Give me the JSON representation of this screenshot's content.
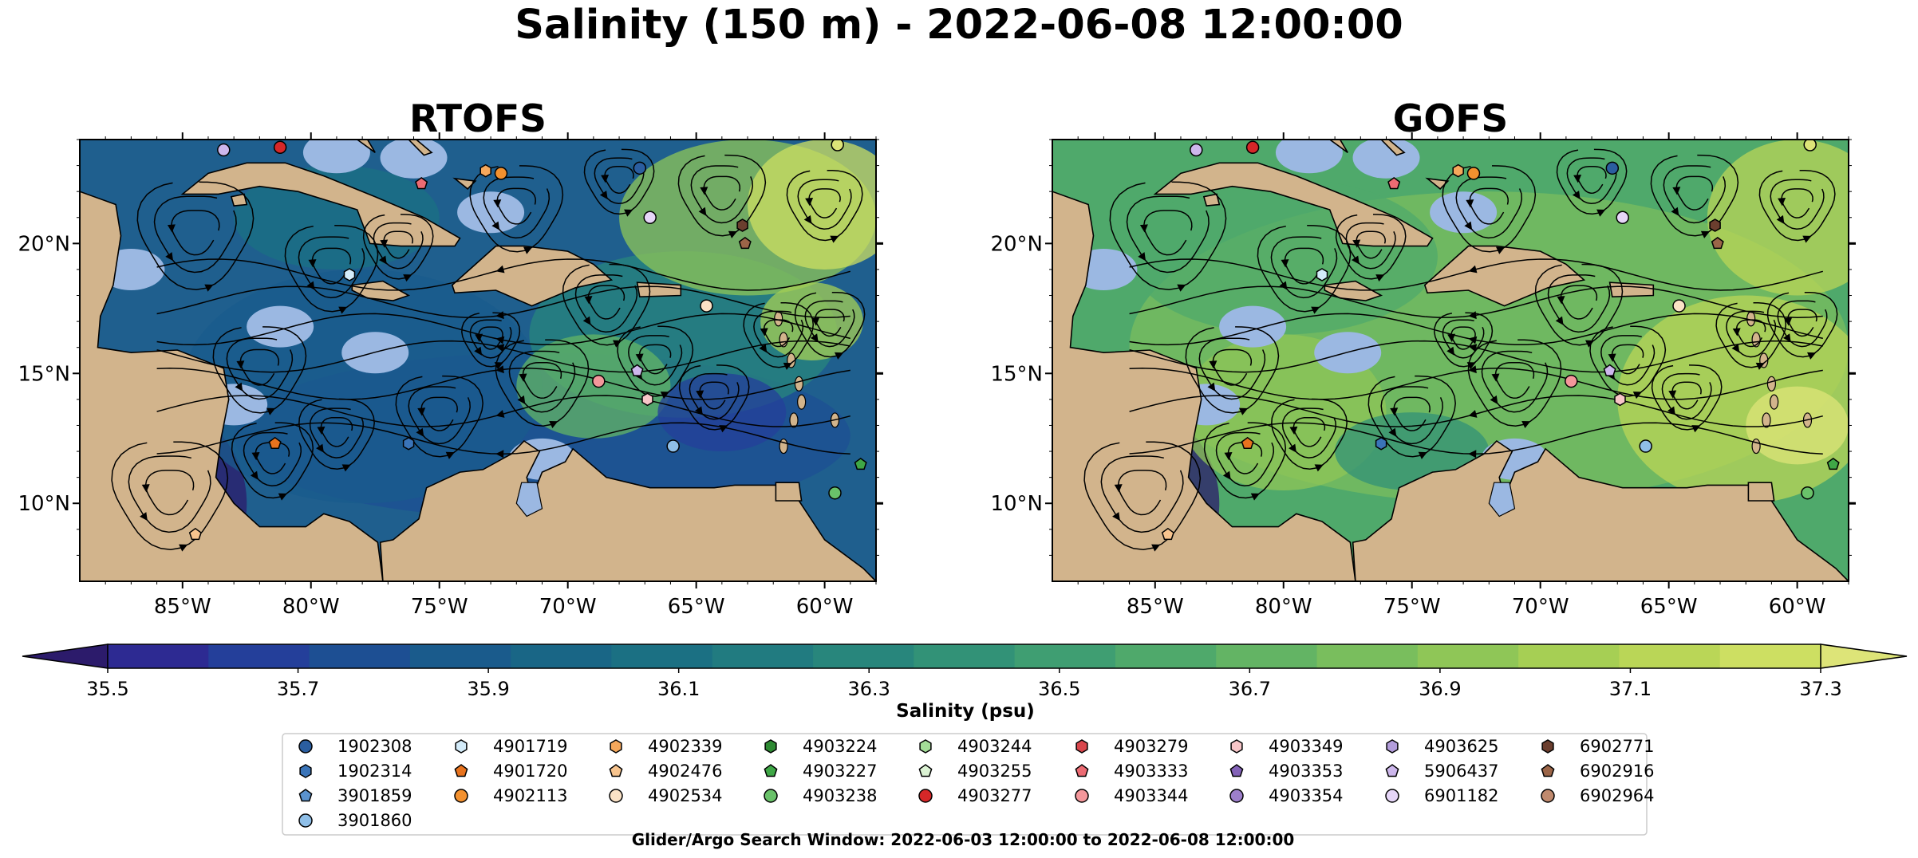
{
  "figure": {
    "title": "Salinity (150 m) - 2022-06-08 12:00:00",
    "footer": "Glider/Argo Search Window: 2022-06-03 12:00:00 to 2022-06-08 12:00:00"
  },
  "chart_data": [
    {
      "type": "heatmap",
      "title": "RTOFS",
      "x_ticks": [
        "85°W",
        "80°W",
        "75°W",
        "70°W",
        "65°W",
        "60°W"
      ],
      "y_ticks": [
        "20°N",
        "15°N",
        "10°N"
      ],
      "xlim": [
        -89,
        -58
      ],
      "ylim": [
        7,
        24
      ],
      "overlay": "streamlines"
    },
    {
      "type": "heatmap",
      "title": "GOFS",
      "x_ticks": [
        "85°W",
        "80°W",
        "75°W",
        "70°W",
        "65°W",
        "60°W"
      ],
      "y_ticks": [
        "20°N",
        "15°N",
        "10°N"
      ],
      "xlim": [
        -89,
        -58
      ],
      "ylim": [
        7,
        24
      ],
      "overlay": "streamlines"
    }
  ],
  "colorbar": {
    "label": "Salinity (psu)",
    "vmin": 35.5,
    "vmax": 37.3,
    "step": 0.1,
    "ticks": [
      "35.5",
      "35.7",
      "35.9",
      "36.1",
      "36.3",
      "36.5",
      "36.7",
      "36.9",
      "37.1",
      "37.3"
    ],
    "colors": [
      "#2c1b6b",
      "#2d2a92",
      "#243f9a",
      "#1d4f93",
      "#1a5b8c",
      "#196686",
      "#1b7083",
      "#217b80",
      "#28867c",
      "#329277",
      "#3f9e72",
      "#4fa96b",
      "#63b464",
      "#79be5d",
      "#8fc657",
      "#a6cf54",
      "#bad657",
      "#cddf62",
      "#dde478"
    ]
  },
  "legend": {
    "columns": [
      [
        {
          "label": "1902308",
          "marker": "circle",
          "color": "#2b5ea0"
        },
        {
          "label": "1902314",
          "marker": "hexagon",
          "color": "#3a74b8"
        },
        {
          "label": "3901859",
          "marker": "pentagon",
          "color": "#5b93cf"
        },
        {
          "label": "3901860",
          "marker": "circle",
          "color": "#8fbfe8"
        }
      ],
      [
        {
          "label": "4901719",
          "marker": "hexagon",
          "color": "#d4ecfa"
        },
        {
          "label": "4901720",
          "marker": "pentagon",
          "color": "#e8731e"
        },
        {
          "label": "4902113",
          "marker": "circle",
          "color": "#f3912f"
        }
      ],
      [
        {
          "label": "4902339",
          "marker": "hexagon",
          "color": "#f5a85c"
        },
        {
          "label": "4902476",
          "marker": "pentagon",
          "color": "#f7c48e"
        },
        {
          "label": "4902534",
          "marker": "circle",
          "color": "#fbe2c6"
        }
      ],
      [
        {
          "label": "4903224",
          "marker": "hexagon",
          "color": "#2e8a33"
        },
        {
          "label": "4903227",
          "marker": "pentagon",
          "color": "#3fa746"
        },
        {
          "label": "4903238",
          "marker": "circle",
          "color": "#6ac26a"
        }
      ],
      [
        {
          "label": "4903244",
          "marker": "hexagon",
          "color": "#a4dc98"
        },
        {
          "label": "4903255",
          "marker": "pentagon",
          "color": "#dcf3d4"
        },
        {
          "label": "4903277",
          "marker": "circle",
          "color": "#d62728"
        }
      ],
      [
        {
          "label": "4903279",
          "marker": "hexagon",
          "color": "#d9464c"
        },
        {
          "label": "4903333",
          "marker": "pentagon",
          "color": "#ec6b73"
        },
        {
          "label": "4903344",
          "marker": "circle",
          "color": "#f4979b"
        }
      ],
      [
        {
          "label": "4903349",
          "marker": "hexagon",
          "color": "#f8c6c8"
        },
        {
          "label": "4903353",
          "marker": "pentagon",
          "color": "#8362b7"
        },
        {
          "label": "4903354",
          "marker": "circle",
          "color": "#9d7fcb"
        }
      ],
      [
        {
          "label": "4903625",
          "marker": "hexagon",
          "color": "#b39ddb"
        },
        {
          "label": "5906437",
          "marker": "pentagon",
          "color": "#cdb7ec"
        },
        {
          "label": "6901182",
          "marker": "circle",
          "color": "#e6d6f8"
        }
      ],
      [
        {
          "label": "6902771",
          "marker": "hexagon",
          "color": "#6b3e2e"
        },
        {
          "label": "6902916",
          "marker": "pentagon",
          "color": "#9b6548"
        },
        {
          "label": "6902964",
          "marker": "circle",
          "color": "#c08a6e"
        }
      ]
    ]
  },
  "floats": [
    {
      "lon": -83.4,
      "lat": 23.6,
      "marker": "circle",
      "color": "#cdb7ec"
    },
    {
      "lon": -81.2,
      "lat": 23.7,
      "marker": "circle",
      "color": "#d62728"
    },
    {
      "lon": -75.7,
      "lat": 22.3,
      "marker": "pentagon",
      "color": "#ec6b73"
    },
    {
      "lon": -73.2,
      "lat": 22.8,
      "marker": "hexagon",
      "color": "#f5a85c"
    },
    {
      "lon": -72.6,
      "lat": 22.7,
      "marker": "circle",
      "color": "#f3912f"
    },
    {
      "lon": -67.2,
      "lat": 22.9,
      "marker": "circle",
      "color": "#2b5ea0"
    },
    {
      "lon": -66.8,
      "lat": 21.0,
      "marker": "circle",
      "color": "#e6d6f8"
    },
    {
      "lon": -63.2,
      "lat": 20.7,
      "marker": "hexagon",
      "color": "#6b3e2e"
    },
    {
      "lon": -63.1,
      "lat": 20.0,
      "marker": "pentagon",
      "color": "#9b6548"
    },
    {
      "lon": -78.5,
      "lat": 18.8,
      "marker": "hexagon",
      "color": "#d4ecfa"
    },
    {
      "lon": -64.6,
      "lat": 17.6,
      "marker": "circle",
      "color": "#fbe2c6"
    },
    {
      "lon": -67.3,
      "lat": 15.1,
      "marker": "pentagon",
      "color": "#cdb7ec"
    },
    {
      "lon": -68.8,
      "lat": 14.7,
      "marker": "circle",
      "color": "#f4979b"
    },
    {
      "lon": -66.9,
      "lat": 14.0,
      "marker": "hexagon",
      "color": "#f8c6c8"
    },
    {
      "lon": -81.4,
      "lat": 12.3,
      "marker": "pentagon",
      "color": "#e8731e"
    },
    {
      "lon": -76.2,
      "lat": 12.3,
      "marker": "hexagon",
      "color": "#3a74b8"
    },
    {
      "lon": -65.9,
      "lat": 12.2,
      "marker": "circle",
      "color": "#8fbfe8"
    },
    {
      "lon": -59.6,
      "lat": 10.4,
      "marker": "circle",
      "color": "#6ac26a"
    },
    {
      "lon": -58.6,
      "lat": 11.5,
      "marker": "pentagon",
      "color": "#3fa746"
    },
    {
      "lon": -84.5,
      "lat": 8.8,
      "marker": "pentagon",
      "color": "#f7c48e"
    },
    {
      "lon": -59.5,
      "lat": 23.8,
      "marker": "circle",
      "color": "#dde478"
    }
  ]
}
